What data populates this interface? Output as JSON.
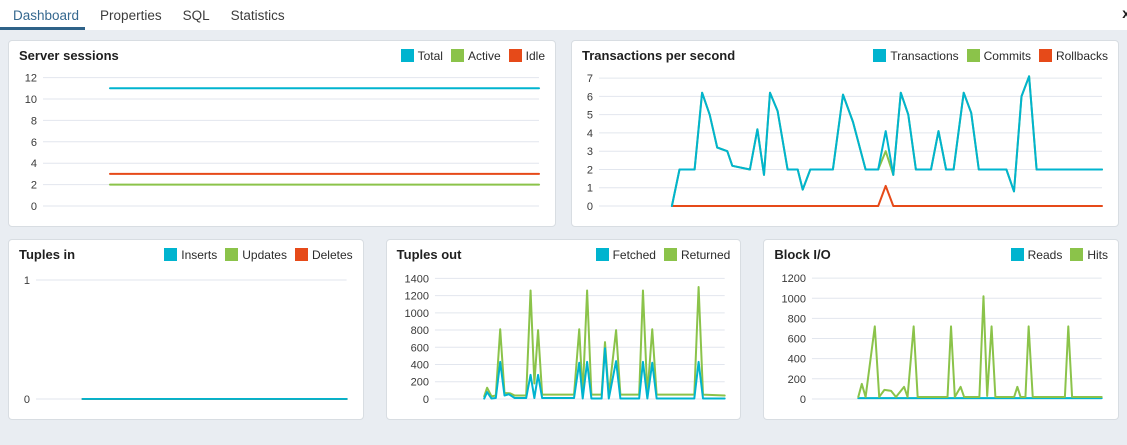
{
  "colors": {
    "cyan": "#00b4cf",
    "green": "#8bc34a",
    "red": "#e64a19",
    "grid": "#e2e6ee",
    "tick_text": "#3a3a3a",
    "tab_active": "#35688f",
    "tab_underline": "#2f6288"
  },
  "tabs": {
    "items": [
      {
        "label": "Dashboard",
        "active": true
      },
      {
        "label": "Properties",
        "active": false
      },
      {
        "label": "SQL",
        "active": false
      },
      {
        "label": "Statistics",
        "active": false
      }
    ],
    "close_label": "x"
  },
  "panels": [
    {
      "title": "Server sessions",
      "legend": [
        {
          "label": "Total",
          "color": "cyan"
        },
        {
          "label": "Active",
          "color": "green"
        },
        {
          "label": "Idle",
          "color": "red"
        }
      ]
    },
    {
      "title": "Transactions per second",
      "legend": [
        {
          "label": "Transactions",
          "color": "cyan"
        },
        {
          "label": "Commits",
          "color": "green"
        },
        {
          "label": "Rollbacks",
          "color": "red"
        }
      ]
    },
    {
      "title": "Tuples in",
      "legend": [
        {
          "label": "Inserts",
          "color": "cyan"
        },
        {
          "label": "Updates",
          "color": "green"
        },
        {
          "label": "Deletes",
          "color": "red"
        }
      ]
    },
    {
      "title": "Tuples out",
      "legend": [
        {
          "label": "Fetched",
          "color": "cyan"
        },
        {
          "label": "Returned",
          "color": "green"
        }
      ]
    },
    {
      "title": "Block I/O",
      "legend": [
        {
          "label": "Reads",
          "color": "cyan"
        },
        {
          "label": "Hits",
          "color": "green"
        }
      ]
    }
  ],
  "chart_data": [
    {
      "type": "line",
      "title": "Server sessions",
      "xlabel": "",
      "ylabel": "",
      "x_note": "time, unlabeled; x given as percent of plot width",
      "ylim": [
        0,
        12.8
      ],
      "yticks": [
        0,
        2,
        4,
        6,
        8,
        10,
        12
      ],
      "grid": true,
      "series": [
        {
          "name": "Active",
          "color": "green",
          "points": [
            [
              13.5,
              2
            ],
            [
              100,
              2
            ]
          ]
        },
        {
          "name": "Idle",
          "color": "red",
          "points": [
            [
              13.5,
              3
            ],
            [
              100,
              3
            ]
          ]
        },
        {
          "name": "Total",
          "color": "cyan",
          "points": [
            [
              13.5,
              11
            ],
            [
              100,
              11
            ]
          ]
        }
      ]
    },
    {
      "type": "line",
      "title": "Transactions per second",
      "xlabel": "",
      "ylabel": "",
      "x_note": "time, unlabeled; x given as percent of plot width",
      "ylim": [
        0,
        7.5
      ],
      "yticks": [
        0,
        1,
        2,
        3,
        4,
        5,
        6,
        7
      ],
      "grid": true,
      "series": [
        {
          "name": "Commits",
          "color": "green",
          "points": [
            [
              14.5,
              0
            ],
            [
              16,
              2
            ],
            [
              19,
              2
            ],
            [
              20.5,
              6.2
            ],
            [
              22,
              5
            ],
            [
              23.5,
              3.2
            ],
            [
              25.5,
              3
            ],
            [
              26.5,
              2.2
            ],
            [
              30,
              2
            ],
            [
              31.5,
              4.2
            ],
            [
              32.8,
              1.7
            ],
            [
              34,
              6.2
            ],
            [
              35.5,
              5.2
            ],
            [
              37.5,
              2
            ],
            [
              39.5,
              2
            ],
            [
              40.5,
              0.9
            ],
            [
              42,
              2
            ],
            [
              46.5,
              2
            ],
            [
              48.5,
              6.1
            ],
            [
              50.5,
              4.6
            ],
            [
              53,
              2
            ],
            [
              55.5,
              2
            ],
            [
              57,
              3.0
            ],
            [
              58.5,
              1.7
            ],
            [
              60,
              6.2
            ],
            [
              61.5,
              5
            ],
            [
              63,
              2
            ],
            [
              66,
              2
            ],
            [
              67.5,
              4.1
            ],
            [
              69,
              2
            ],
            [
              70.5,
              2
            ],
            [
              72.5,
              6.2
            ],
            [
              74,
              5.1
            ],
            [
              75.5,
              2
            ],
            [
              81,
              2
            ],
            [
              82.5,
              0.8
            ],
            [
              84,
              6
            ],
            [
              85.5,
              7.1
            ],
            [
              87,
              2
            ],
            [
              100,
              2
            ]
          ]
        },
        {
          "name": "Rollbacks",
          "color": "red",
          "points": [
            [
              14.5,
              0
            ],
            [
              55.5,
              0
            ],
            [
              57,
              1.1
            ],
            [
              58.5,
              0
            ],
            [
              100,
              0
            ]
          ]
        },
        {
          "name": "Transactions",
          "color": "cyan",
          "points": [
            [
              14.5,
              0
            ],
            [
              16,
              2
            ],
            [
              19,
              2
            ],
            [
              20.5,
              6.2
            ],
            [
              22,
              5
            ],
            [
              23.5,
              3.2
            ],
            [
              25.5,
              3
            ],
            [
              26.5,
              2.2
            ],
            [
              30,
              2
            ],
            [
              31.5,
              4.2
            ],
            [
              32.8,
              1.7
            ],
            [
              34,
              6.2
            ],
            [
              35.5,
              5.2
            ],
            [
              37.5,
              2
            ],
            [
              39.5,
              2
            ],
            [
              40.5,
              0.9
            ],
            [
              42,
              2
            ],
            [
              46.5,
              2
            ],
            [
              48.5,
              6.1
            ],
            [
              50.5,
              4.6
            ],
            [
              53,
              2
            ],
            [
              55.5,
              2
            ],
            [
              57,
              4.1
            ],
            [
              58.5,
              1.7
            ],
            [
              60,
              6.2
            ],
            [
              61.5,
              5
            ],
            [
              63,
              2
            ],
            [
              66,
              2
            ],
            [
              67.5,
              4.1
            ],
            [
              69,
              2
            ],
            [
              70.5,
              2
            ],
            [
              72.5,
              6.2
            ],
            [
              74,
              5.1
            ],
            [
              75.5,
              2
            ],
            [
              81,
              2
            ],
            [
              82.5,
              0.8
            ],
            [
              84,
              6
            ],
            [
              85.5,
              7.1
            ],
            [
              87,
              2
            ],
            [
              100,
              2
            ]
          ]
        }
      ]
    },
    {
      "type": "line",
      "title": "Tuples in",
      "xlabel": "",
      "ylabel": "",
      "x_note": "time, unlabeled; x given as percent of plot width",
      "ylim": [
        0,
        1.1
      ],
      "yticks": [
        0,
        1
      ],
      "grid": true,
      "series": [
        {
          "name": "Updates",
          "color": "green",
          "points": [
            [
              15,
              0
            ],
            [
              100,
              0
            ]
          ]
        },
        {
          "name": "Deletes",
          "color": "red",
          "points": [
            [
              15,
              0
            ],
            [
              100,
              0
            ]
          ]
        },
        {
          "name": "Inserts",
          "color": "cyan",
          "points": [
            [
              15,
              0
            ],
            [
              100,
              0
            ]
          ]
        }
      ]
    },
    {
      "type": "line",
      "title": "Tuples out",
      "xlabel": "",
      "ylabel": "",
      "x_note": "time, unlabeled; x given as percent of plot width",
      "ylim": [
        0,
        1520
      ],
      "yticks": [
        0,
        200,
        400,
        600,
        800,
        1000,
        1200,
        1400
      ],
      "grid": true,
      "series": [
        {
          "name": "Returned",
          "color": "green",
          "points": [
            [
              17,
              30
            ],
            [
              18,
              130
            ],
            [
              19.5,
              30
            ],
            [
              21,
              40
            ],
            [
              22.5,
              810
            ],
            [
              24,
              70
            ],
            [
              26,
              65
            ],
            [
              27.5,
              40
            ],
            [
              31.5,
              40
            ],
            [
              33,
              1260
            ],
            [
              34.3,
              180
            ],
            [
              35.6,
              800
            ],
            [
              37,
              50
            ],
            [
              48,
              50
            ],
            [
              49.8,
              810
            ],
            [
              51,
              50
            ],
            [
              52.5,
              1260
            ],
            [
              54,
              50
            ],
            [
              57.5,
              50
            ],
            [
              58.7,
              660
            ],
            [
              60,
              50
            ],
            [
              62.5,
              800
            ],
            [
              64,
              50
            ],
            [
              70.5,
              50
            ],
            [
              71.8,
              1260
            ],
            [
              73.3,
              50
            ],
            [
              75,
              810
            ],
            [
              76.5,
              50
            ],
            [
              89.5,
              50
            ],
            [
              91,
              1300
            ],
            [
              92.5,
              50
            ],
            [
              100,
              40
            ]
          ]
        },
        {
          "name": "Fetched",
          "color": "cyan",
          "points": [
            [
              17,
              5
            ],
            [
              18,
              80
            ],
            [
              19.5,
              5
            ],
            [
              21,
              10
            ],
            [
              22.5,
              430
            ],
            [
              24,
              40
            ],
            [
              25.5,
              55
            ],
            [
              27.5,
              10
            ],
            [
              31.5,
              10
            ],
            [
              33,
              280
            ],
            [
              34.3,
              10
            ],
            [
              35.6,
              280
            ],
            [
              37,
              10
            ],
            [
              48,
              10
            ],
            [
              49.8,
              420
            ],
            [
              51,
              5
            ],
            [
              52.5,
              430
            ],
            [
              54,
              5
            ],
            [
              57.5,
              5
            ],
            [
              58.7,
              590
            ],
            [
              60,
              5
            ],
            [
              62.5,
              440
            ],
            [
              64,
              5
            ],
            [
              70.5,
              5
            ],
            [
              71.8,
              430
            ],
            [
              73.3,
              5
            ],
            [
              75,
              420
            ],
            [
              76.5,
              5
            ],
            [
              89.5,
              5
            ],
            [
              91,
              430
            ],
            [
              92.5,
              5
            ],
            [
              100,
              5
            ]
          ]
        }
      ]
    },
    {
      "type": "line",
      "title": "Block I/O",
      "xlabel": "",
      "ylabel": "",
      "x_note": "time, unlabeled; x given as percent of plot width",
      "ylim": [
        0,
        1300
      ],
      "yticks": [
        0,
        200,
        400,
        600,
        800,
        1000,
        1200
      ],
      "grid": true,
      "series": [
        {
          "name": "Reads",
          "color": "cyan",
          "points": [
            [
              16,
              8
            ],
            [
              100,
              8
            ]
          ]
        },
        {
          "name": "Hits",
          "color": "green",
          "points": [
            [
              16,
              20
            ],
            [
              17.2,
              150
            ],
            [
              18.5,
              20
            ],
            [
              21.7,
              720
            ],
            [
              23.2,
              20
            ],
            [
              25,
              90
            ],
            [
              27.3,
              80
            ],
            [
              29,
              20
            ],
            [
              31.8,
              120
            ],
            [
              33,
              20
            ],
            [
              35.1,
              720
            ],
            [
              36.5,
              20
            ],
            [
              46.8,
              20
            ],
            [
              48,
              720
            ],
            [
              49.3,
              20
            ],
            [
              51.3,
              120
            ],
            [
              52.5,
              20
            ],
            [
              57.8,
              20
            ],
            [
              59.2,
              1020
            ],
            [
              60.5,
              30
            ],
            [
              62,
              720
            ],
            [
              63.3,
              20
            ],
            [
              69.8,
              20
            ],
            [
              70.9,
              120
            ],
            [
              72,
              20
            ],
            [
              73.7,
              20
            ],
            [
              74.8,
              720
            ],
            [
              76.2,
              20
            ],
            [
              87.3,
              20
            ],
            [
              88.5,
              720
            ],
            [
              89.8,
              20
            ],
            [
              100,
              20
            ]
          ]
        }
      ]
    }
  ]
}
